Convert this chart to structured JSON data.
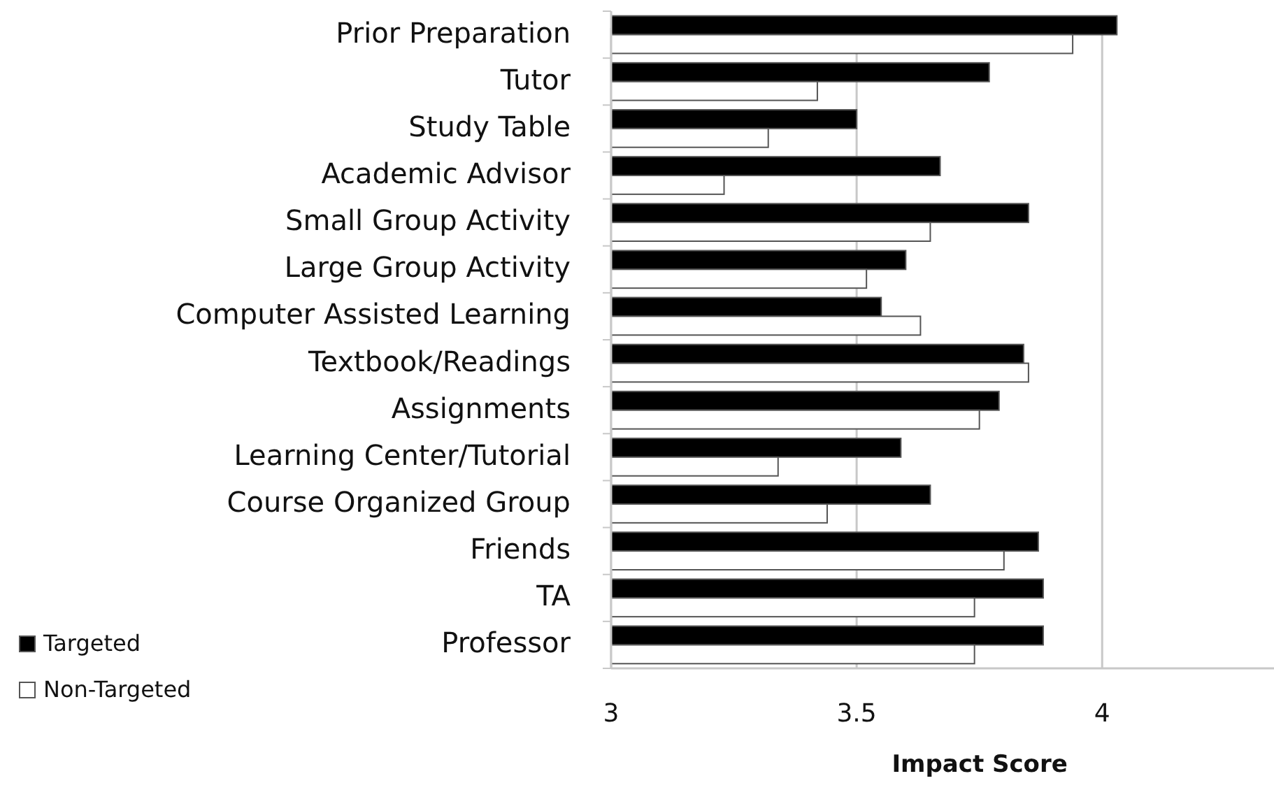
{
  "chart_data": {
    "type": "bar",
    "orientation": "horizontal",
    "xlabel": "Impact Score",
    "categories": [
      "Prior Preparation",
      "Tutor",
      "Study Table",
      "Academic Advisor",
      "Small Group Activity",
      "Large Group Activity",
      "Computer Assisted Learning",
      "Textbook/Readings",
      "Assignments",
      "Learning Center/Tutorial",
      "Course Organized Group",
      "Friends",
      "TA",
      "Professor"
    ],
    "series": [
      {
        "name": "Targeted",
        "color": "#000000",
        "values": [
          4.03,
          3.77,
          3.5,
          3.67,
          3.85,
          3.6,
          3.55,
          3.84,
          3.79,
          3.59,
          3.65,
          3.87,
          3.88,
          3.88
        ]
      },
      {
        "name": "Non-Targeted",
        "color": "#ffffff",
        "values": [
          3.94,
          3.42,
          3.32,
          3.23,
          3.65,
          3.52,
          3.63,
          3.85,
          3.75,
          3.34,
          3.44,
          3.8,
          3.74,
          3.74
        ]
      }
    ],
    "xlim": [
      3,
      4.35
    ],
    "xticks": [
      3,
      3.5,
      4
    ],
    "grid": "x",
    "legend": "bottom left"
  }
}
